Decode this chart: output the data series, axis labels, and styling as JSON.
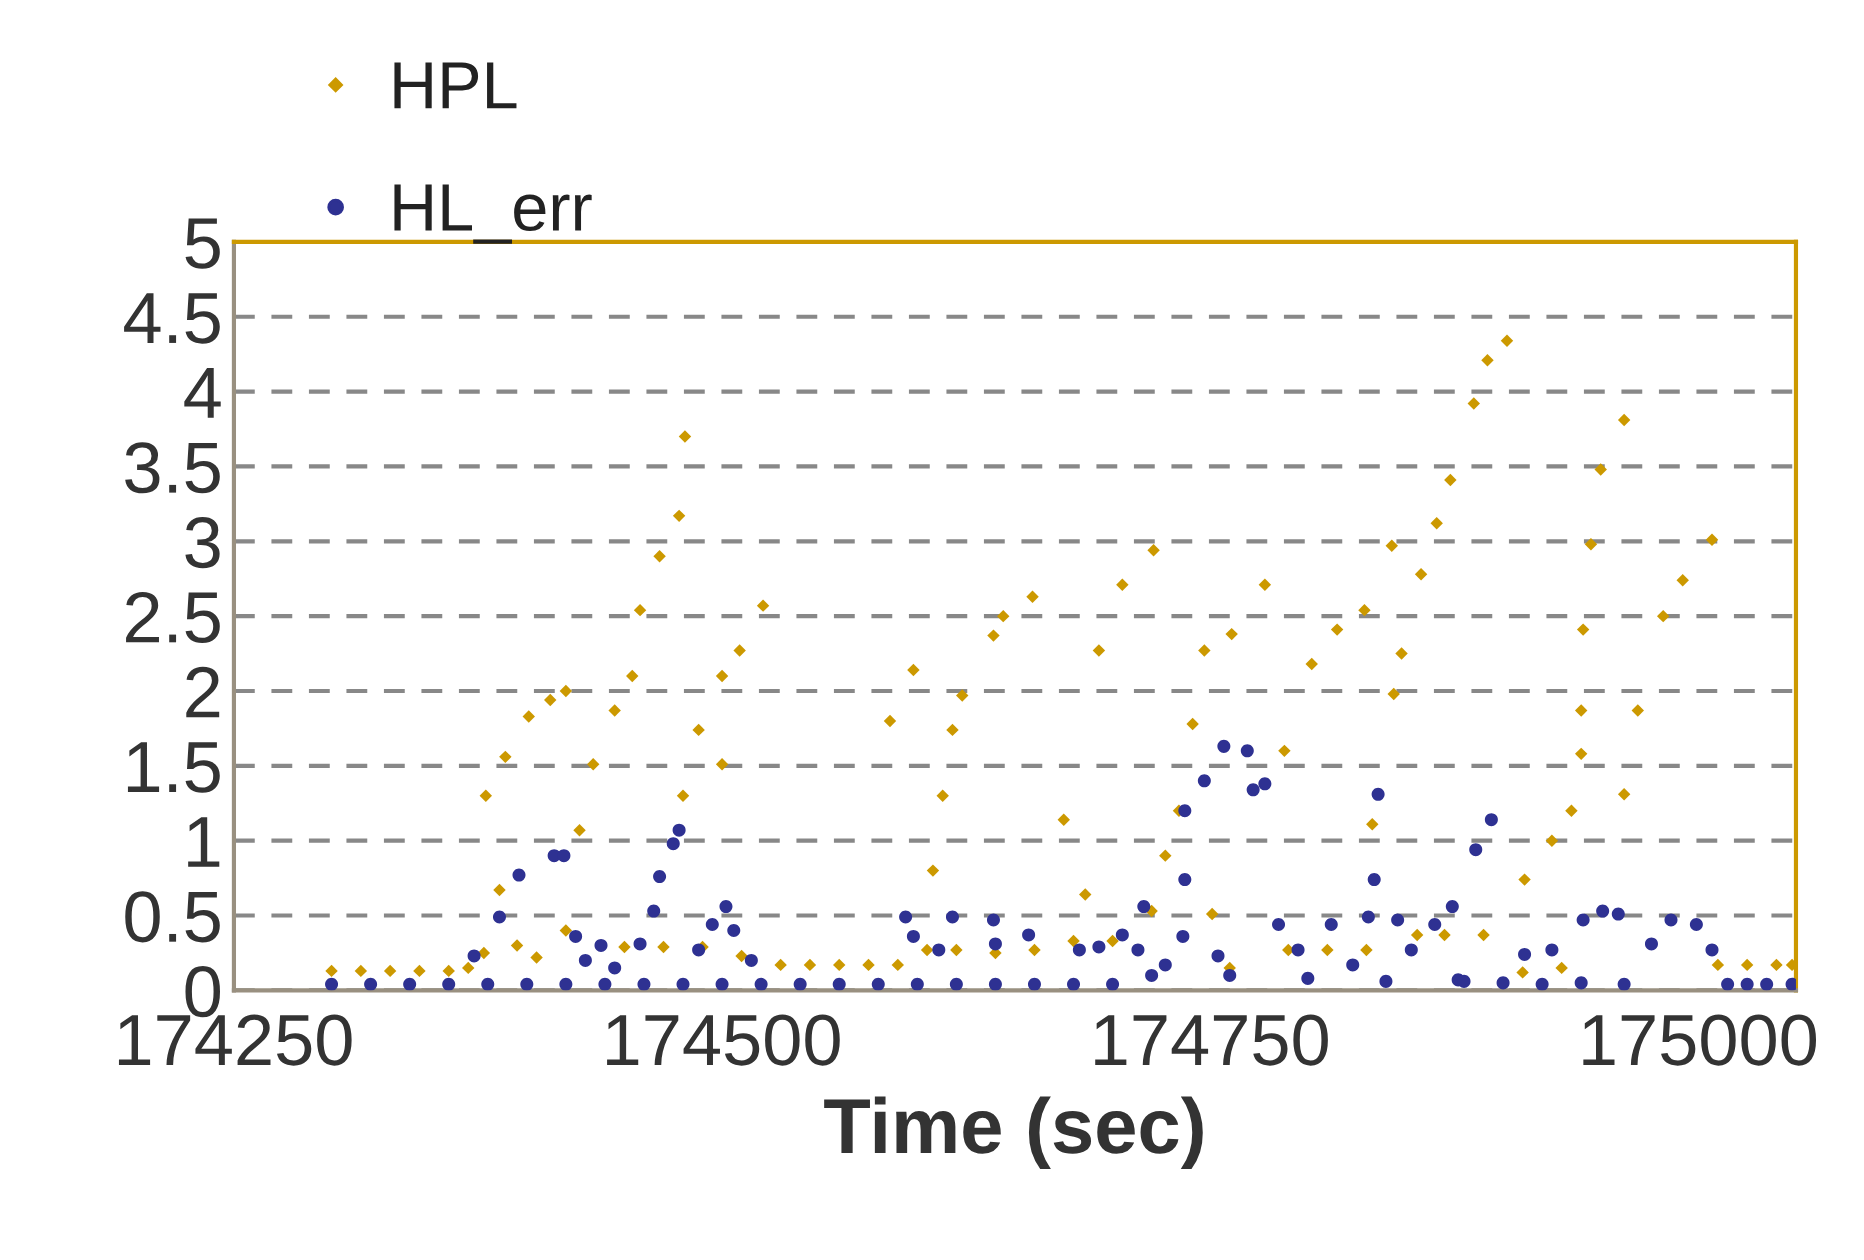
{
  "chart_data": {
    "type": "scatter",
    "xlabel": "Time (sec)",
    "xlim": [
      174250,
      175050
    ],
    "xticks": [
      174250,
      174500,
      174750,
      175000
    ],
    "ylim": [
      0,
      5
    ],
    "yticks": [
      0,
      0.5,
      1,
      1.5,
      2,
      2.5,
      3,
      3.5,
      4,
      4.5,
      5
    ],
    "grid": "y",
    "line_style": "dashed",
    "legend": "top left",
    "series": [
      {
        "name": "HPL",
        "color": "#cc9900",
        "marker": "diamond",
        "x": [
          174300,
          174315,
          174330,
          174345,
          174360,
          174370,
          174378,
          174395,
          174405,
          174386,
          174379,
          174389,
          174401,
          174412,
          174420,
          174420,
          174427,
          174434,
          174445,
          174454,
          174458,
          174468,
          174478,
          174481,
          174480,
          174488,
          174500,
          174509,
          174500,
          174450,
          174470,
          174490,
          174510,
          174521,
          174530,
          174545,
          174560,
          174575,
          174590,
          174586,
          174598,
          174608,
          174613,
          174618,
          174623,
          174639,
          174644,
          174659,
          174675,
          174686,
          174605,
          174620,
          174640,
          174660,
          174680,
          174700,
          174693,
          174705,
          174721,
          174720,
          174727,
          174734,
          174741,
          174747,
          174751,
          174761,
          174778,
          174788,
          174802,
          174815,
          174829,
          174843,
          174844,
          174848,
          174858,
          174833,
          174866,
          174873,
          174885,
          174892,
          174902,
          174911,
          174925,
          174935,
          174940,
          174940,
          174941,
          174945,
          174950,
          174962,
          174962,
          174969,
          174982,
          174992,
          175007,
          174760,
          174790,
          174810,
          174830,
          174856,
          174870,
          174890,
          174910,
          174930,
          175010,
          175025,
          175040,
          175048
        ],
        "values": [
          0.13,
          0.13,
          0.13,
          0.13,
          0.13,
          0.15,
          0.25,
          0.3,
          0.22,
          0.67,
          1.3,
          1.56,
          1.83,
          1.94,
          2.0,
          0.4,
          1.07,
          1.51,
          1.87,
          2.1,
          2.54,
          2.9,
          3.17,
          3.7,
          1.3,
          1.74,
          2.1,
          2.27,
          1.51,
          0.29,
          0.29,
          0.29,
          0.23,
          2.57,
          0.17,
          0.17,
          0.17,
          0.17,
          0.17,
          1.8,
          2.14,
          0.8,
          1.3,
          1.74,
          1.97,
          2.37,
          2.5,
          2.63,
          1.14,
          0.64,
          0.27,
          0.27,
          0.25,
          0.27,
          0.33,
          0.33,
          2.27,
          2.71,
          2.94,
          0.53,
          0.9,
          1.2,
          1.78,
          2.27,
          0.51,
          2.38,
          2.71,
          1.6,
          2.18,
          2.41,
          2.54,
          2.97,
          1.98,
          2.25,
          2.78,
          1.11,
          3.12,
          3.41,
          3.92,
          4.21,
          4.34,
          0.74,
          1.0,
          1.2,
          1.58,
          1.87,
          2.41,
          2.98,
          3.48,
          3.81,
          1.31,
          1.87,
          2.5,
          2.74,
          3.01,
          0.15,
          0.27,
          0.27,
          0.27,
          0.37,
          0.37,
          0.37,
          0.12,
          0.15,
          0.17,
          0.17,
          0.17,
          0.17
        ]
      },
      {
        "name": "HL_err",
        "color": "#2e3192",
        "marker": "circle",
        "x": [
          174300,
          174320,
          174340,
          174360,
          174380,
          174400,
          174420,
          174440,
          174460,
          174480,
          174500,
          174520,
          174540,
          174560,
          174580,
          174600,
          174620,
          174640,
          174660,
          174680,
          174700,
          174373,
          174386,
          174396,
          174414,
          174419,
          174425,
          174430,
          174438,
          174445,
          174458,
          174465,
          174468,
          174475,
          174478,
          174488,
          174495,
          174502,
          174506,
          174515,
          174594,
          174598,
          174611,
          174618,
          174639,
          174640,
          174657,
          174683,
          174693,
          174705,
          174713,
          174716,
          174727,
          174736,
          174737,
          174737,
          174747,
          174754,
          174757,
          174769,
          174772,
          174778,
          174785,
          174795,
          174812,
          174823,
          174831,
          174834,
          174836,
          174846,
          174853,
          174865,
          174874,
          174877,
          174886,
          174894,
          174911,
          174925,
          174941,
          174951,
          174959,
          174962,
          174976,
          174986,
          174999,
          175007,
          174720,
          174760,
          174800,
          174840,
          174880,
          174900,
          174920,
          174940,
          175015,
          175025,
          175035,
          175048
        ],
        "values": [
          0.04,
          0.04,
          0.04,
          0.04,
          0.04,
          0.04,
          0.04,
          0.04,
          0.04,
          0.04,
          0.04,
          0.04,
          0.04,
          0.04,
          0.04,
          0.04,
          0.04,
          0.04,
          0.04,
          0.04,
          0.04,
          0.23,
          0.49,
          0.77,
          0.9,
          0.9,
          0.36,
          0.2,
          0.3,
          0.15,
          0.31,
          0.53,
          0.76,
          0.98,
          1.07,
          0.27,
          0.44,
          0.56,
          0.4,
          0.2,
          0.49,
          0.36,
          0.27,
          0.49,
          0.47,
          0.31,
          0.37,
          0.27,
          0.29,
          0.37,
          0.27,
          0.56,
          0.17,
          0.36,
          0.74,
          1.2,
          1.4,
          0.23,
          1.63,
          1.6,
          1.34,
          1.38,
          0.44,
          0.27,
          0.44,
          0.17,
          0.49,
          0.74,
          1.31,
          0.47,
          0.27,
          0.44,
          0.56,
          0.07,
          0.94,
          1.14,
          0.24,
          0.27,
          0.47,
          0.53,
          0.51,
          0.04,
          0.31,
          0.47,
          0.44,
          0.27,
          0.1,
          0.1,
          0.08,
          0.06,
          0.06,
          0.05,
          0.04,
          0.05,
          0.04,
          0.04,
          0.04,
          0.04
        ]
      }
    ]
  }
}
